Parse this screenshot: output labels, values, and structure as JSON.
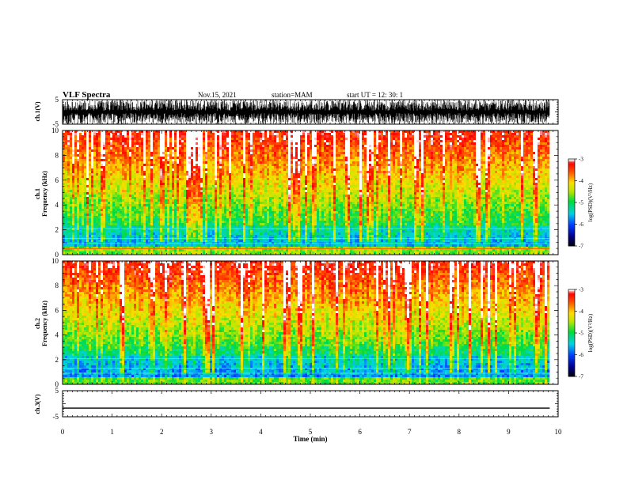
{
  "header": {
    "title": "VLF Spectra",
    "date": "Nov.15, 2021",
    "station": "station=MAM",
    "start": "start UT =  12: 30: 1"
  },
  "chart_data": {
    "type": "heatmap",
    "x_axis": {
      "label": "Time (min)",
      "range": [
        0,
        10
      ],
      "ticks": [
        "0",
        "1",
        "2",
        "3",
        "4",
        "5",
        "6",
        "7",
        "8",
        "9",
        "10"
      ]
    },
    "data_end_min": 9.83,
    "panels": [
      {
        "id": "ch1-waveform",
        "type": "line",
        "ylabel": "ch.1(V)",
        "ylim": [
          -5,
          5
        ],
        "yticks": [
          "5",
          "-5"
        ]
      },
      {
        "id": "ch1-spectrogram",
        "type": "heatmap",
        "ylabel": "ch.1\nFrequency (kHz)",
        "ylim": [
          0,
          10
        ],
        "yticks": [
          "0",
          "2",
          "4",
          "6",
          "8",
          "10"
        ],
        "colorbar": {
          "label": "log(PSD)(V²/Hz)",
          "range": [
            -7,
            -3
          ],
          "ticks": [
            "-3",
            "-4",
            "-5",
            "-6",
            "-7"
          ]
        }
      },
      {
        "id": "ch2-spectrogram",
        "type": "heatmap",
        "ylabel": "ch.2\nFrequency (kHz)",
        "ylim": [
          0,
          10
        ],
        "yticks": [
          "0",
          "2",
          "4",
          "6",
          "8",
          "10"
        ],
        "colorbar": {
          "label": "log(PSD)(V²/Hz)",
          "range": [
            -7,
            -3
          ],
          "ticks": [
            "-3",
            "-4",
            "-5",
            "-6",
            "-7"
          ]
        }
      },
      {
        "id": "ch3-waveform",
        "type": "line",
        "ylabel": "ch.3(V)",
        "ylim": [
          -5,
          5
        ],
        "yticks": [
          "5",
          "-5"
        ],
        "level_v": -1.7
      }
    ]
  }
}
